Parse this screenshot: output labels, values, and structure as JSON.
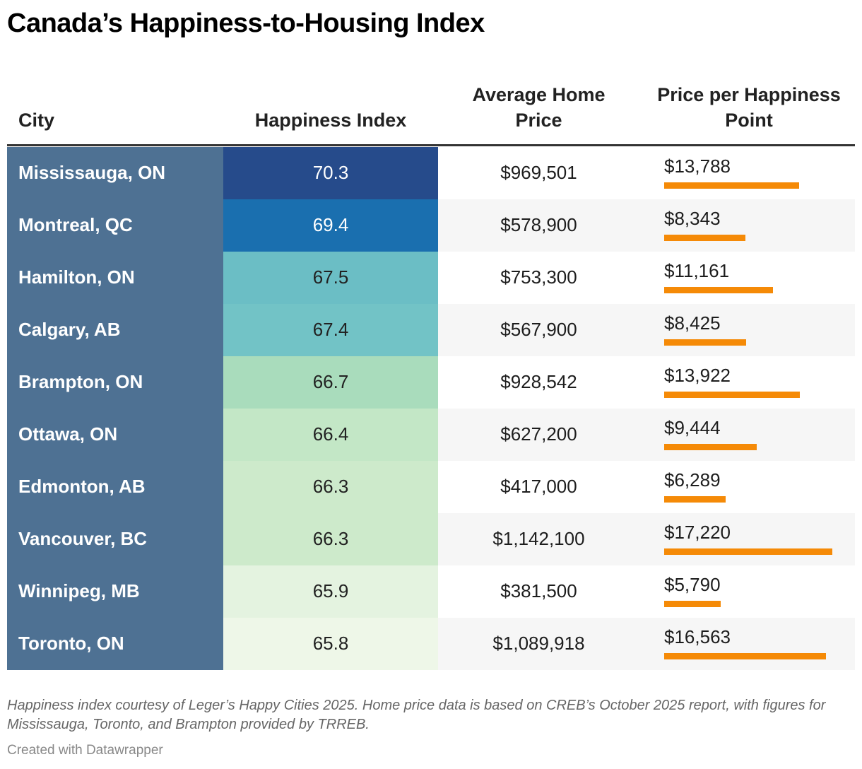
{
  "header": {
    "title": "Canada’s Happiness-to-Housing Index"
  },
  "table": {
    "columns": [
      "City",
      "Happiness Index",
      "Average Home Price",
      "Price per Happiness Point"
    ],
    "bar_color": "#f58a07",
    "rows": [
      {
        "city": "Mississauga, ON",
        "happiness": 70.3,
        "happiness_color": "#264b8b",
        "price": "$969,501",
        "price_per_point": {
          "value": 13788,
          "label": "$13,788"
        }
      },
      {
        "city": "Montreal, QC",
        "happiness": 69.4,
        "happiness_color": "#1a6faf",
        "price": "$578,900",
        "price_per_point": {
          "value": 8343,
          "label": "$8,343"
        }
      },
      {
        "city": "Hamilton, ON",
        "happiness": 67.5,
        "happiness_color": "#6bbec5",
        "price": "$753,300",
        "price_per_point": {
          "value": 11161,
          "label": "$11,161"
        }
      },
      {
        "city": "Calgary, AB",
        "happiness": 67.4,
        "happiness_color": "#72c3c6",
        "price": "$567,900",
        "price_per_point": {
          "value": 8425,
          "label": "$8,425"
        }
      },
      {
        "city": "Brampton, ON",
        "happiness": 66.7,
        "happiness_color": "#a9dcbc",
        "price": "$928,542",
        "price_per_point": {
          "value": 13922,
          "label": "$13,922"
        }
      },
      {
        "city": "Ottawa, ON",
        "happiness": 66.4,
        "happiness_color": "#c3e7c6",
        "price": "$627,200",
        "price_per_point": {
          "value": 9444,
          "label": "$9,444"
        }
      },
      {
        "city": "Edmonton, AB",
        "happiness": 66.3,
        "happiness_color": "#cdeacb",
        "price": "$417,000",
        "price_per_point": {
          "value": 6289,
          "label": "$6,289"
        }
      },
      {
        "city": "Vancouver, BC",
        "happiness": 66.3,
        "happiness_color": "#cdeacb",
        "price": "$1,142,100",
        "price_per_point": {
          "value": 17220,
          "label": "$17,220"
        }
      },
      {
        "city": "Winnipeg, MB",
        "happiness": 65.9,
        "happiness_color": "#e4f3e0",
        "price": "$381,500",
        "price_per_point": {
          "value": 5790,
          "label": "$5,790"
        }
      },
      {
        "city": "Toronto, ON",
        "happiness": 65.8,
        "happiness_color": "#eef7e8",
        "price": "$1,089,918",
        "price_per_point": {
          "value": 16563,
          "label": "$16,563"
        }
      }
    ]
  },
  "footer": {
    "note": "Happiness index courtesy of Leger’s Happy Cities 2025. Home price data is based on CREB’s October 2025 report, with figures for Mississauga, Toronto, and Brampton provided by TRREB.",
    "credit": "Created with Datawrapper"
  }
}
